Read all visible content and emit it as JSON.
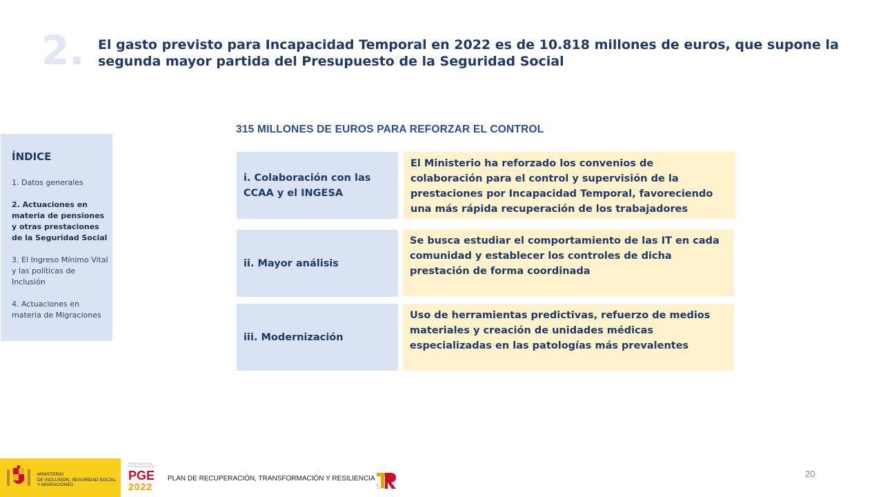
{
  "header": {
    "section_number": "2.",
    "headline": "El gasto previsto para Incapacidad Temporal en 2022 es de 10.818 millones de euros, que supone la segunda mayor partida del Presupuesto de la Seguridad Social"
  },
  "sidebar": {
    "title": "ÍNDICE",
    "items": [
      {
        "label": "1. Datos generales",
        "active": false
      },
      {
        "label": "2. Actuaciones en materia de pensiones y otras prestaciones de la Seguridad Social",
        "active": true
      },
      {
        "label": "3. El Ingreso Mínimo Vital y las políticas de Inclusión",
        "active": false
      },
      {
        "label": "4. Actuaciones en materia de Migraciones",
        "active": false
      }
    ]
  },
  "main": {
    "title": "315 MILLONES DE EUROS PARA REFORZAR EL CONTROL",
    "rows": [
      {
        "label": "i. Colaboración con las CCAA y el INGESA",
        "description": "El Ministerio ha reforzado los convenios de colaboración para el control y supervisión de la prestaciones por Incapacidad Temporal, favoreciendo una más rápida recuperación de los trabajadores"
      },
      {
        "label": "ii. Mayor análisis",
        "description": "Se busca estudiar el comportamiento de las IT en cada comunidad y establecer los controles de dicha prestación de forma coordinada"
      },
      {
        "label": "iii. Modernización",
        "description": "Uso de herramientas predictivas, refuerzo de medios materiales y creación de unidades médicas especializadas en las patologías más prevalentes"
      }
    ]
  },
  "footer": {
    "ministry_lines": [
      "MINISTERIO",
      "DE INCLUSIÓN, SEGURIDAD SOCIAL",
      "Y MIGRACIONES"
    ],
    "pge_small": "PRESENTACIÓN DEL PROYECTO DE LEY DE",
    "pge_big": "PGE",
    "pge_year": "2022",
    "plan": "PLAN DE RECUPERACIÓN, TRANSFORMACIÓN Y RESILIENCIA",
    "page_number": "20"
  },
  "colors": {
    "navy": "#1f3864",
    "label_bg": "#dae3f3",
    "desc_bg": "#fff2cc",
    "footer_yellow": "#f7cf1c",
    "pge_red": "#c8102e"
  },
  "icons": [
    "coat-of-arms-icon",
    "tr-logo-icon"
  ]
}
